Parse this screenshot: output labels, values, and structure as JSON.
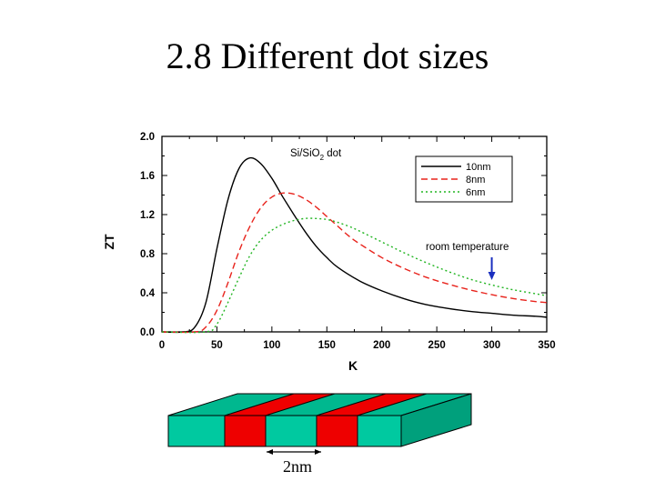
{
  "slide": {
    "title": "2.8 Different dot sizes"
  },
  "chart_data": {
    "type": "line",
    "title_main": "Si/SiO",
    "title_sub": "2",
    "title_tail": " dot",
    "xlabel": "K",
    "ylabel": "ZT",
    "xlim": [
      0,
      350
    ],
    "ylim": [
      0.0,
      2.0
    ],
    "xticks": [
      "0",
      "50",
      "100",
      "150",
      "200",
      "250",
      "300",
      "350"
    ],
    "yticks": [
      "0.0",
      "0.4",
      "0.8",
      "1.2",
      "1.6",
      "2.0"
    ],
    "legend_position": "top-right",
    "series": [
      {
        "name": "10nm",
        "color": "#000000",
        "dash": "solid",
        "x": [
          0,
          20,
          30,
          40,
          50,
          60,
          70,
          80,
          90,
          100,
          110,
          120,
          130,
          140,
          150,
          160,
          180,
          200,
          220,
          240,
          260,
          280,
          300,
          320,
          340,
          350
        ],
        "y": [
          0.0,
          0.0,
          0.05,
          0.3,
          0.85,
          1.35,
          1.67,
          1.78,
          1.72,
          1.57,
          1.38,
          1.2,
          1.03,
          0.88,
          0.76,
          0.66,
          0.52,
          0.42,
          0.34,
          0.28,
          0.24,
          0.21,
          0.19,
          0.17,
          0.16,
          0.15
        ]
      },
      {
        "name": "8nm",
        "color": "#e8231c",
        "dash": "dashed",
        "x": [
          0,
          30,
          40,
          50,
          60,
          70,
          80,
          90,
          100,
          110,
          120,
          130,
          140,
          150,
          160,
          170,
          180,
          200,
          220,
          240,
          260,
          280,
          300,
          320,
          340,
          350
        ],
        "y": [
          0.0,
          0.0,
          0.05,
          0.22,
          0.5,
          0.82,
          1.08,
          1.27,
          1.38,
          1.42,
          1.41,
          1.36,
          1.28,
          1.18,
          1.08,
          0.98,
          0.9,
          0.76,
          0.65,
          0.56,
          0.49,
          0.43,
          0.38,
          0.34,
          0.31,
          0.3
        ]
      },
      {
        "name": "6nm",
        "color": "#22b522",
        "dash": "dotted",
        "x": [
          0,
          40,
          50,
          60,
          70,
          80,
          90,
          100,
          110,
          120,
          130,
          140,
          150,
          160,
          170,
          180,
          200,
          220,
          240,
          260,
          280,
          300,
          320,
          340,
          350
        ],
        "y": [
          0.0,
          0.0,
          0.08,
          0.3,
          0.55,
          0.78,
          0.94,
          1.04,
          1.1,
          1.14,
          1.16,
          1.16,
          1.15,
          1.12,
          1.08,
          1.03,
          0.92,
          0.81,
          0.71,
          0.62,
          0.54,
          0.48,
          0.43,
          0.39,
          0.37
        ]
      }
    ],
    "annotation": {
      "text": "room temperature",
      "x": 300,
      "arrow_color": "#1a2fbf"
    }
  },
  "diagram": {
    "dimension_label": "2nm",
    "colors": {
      "green_top": "#00b88f",
      "green_front": "#00c9a0",
      "green_side": "#00a07c",
      "red": "#ee0000",
      "outline": "#000000"
    }
  }
}
